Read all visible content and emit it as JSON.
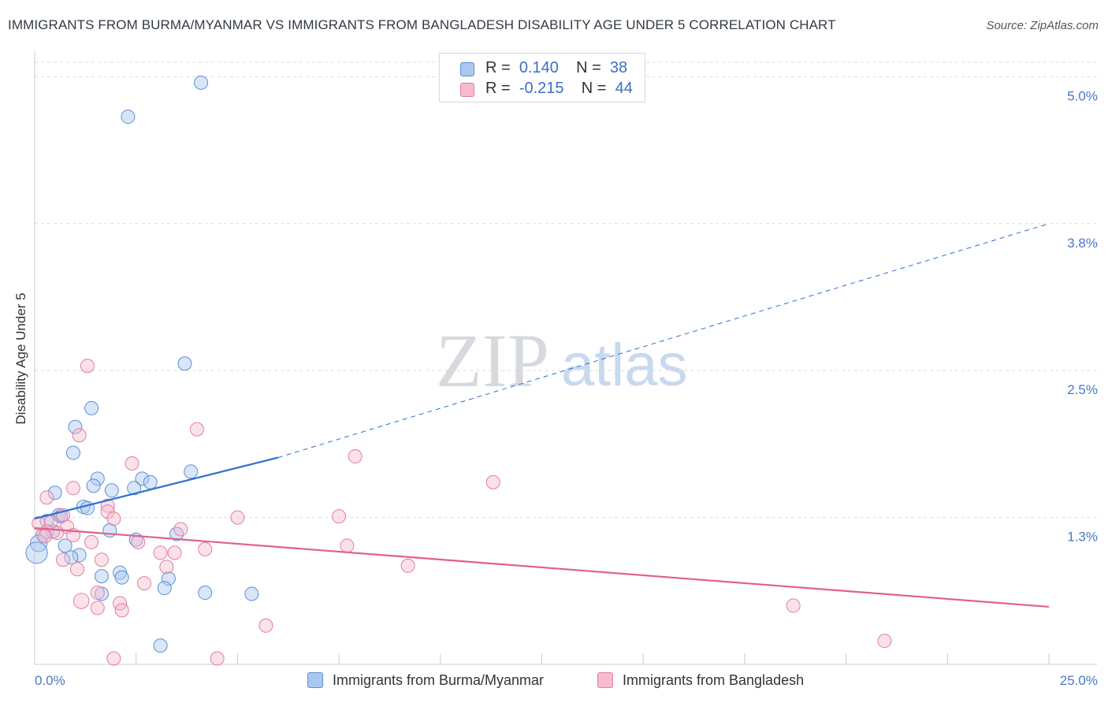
{
  "title": "IMMIGRANTS FROM BURMA/MYANMAR VS IMMIGRANTS FROM BANGLADESH DISABILITY AGE UNDER 5 CORRELATION CHART",
  "source": "Source: ZipAtlas.com",
  "watermark": {
    "zip": "ZIP",
    "atlas": "atlas"
  },
  "legend": {
    "rows": [
      {
        "r_label": "R =",
        "r_value": "0.140",
        "n_label": "N =",
        "n_value": "38"
      },
      {
        "r_label": "R =",
        "r_value": "-0.215",
        "n_label": "N =",
        "n_value": "44"
      }
    ]
  },
  "bottom_legend": {
    "items": [
      {
        "label": "Immigrants from Burma/Myanmar"
      },
      {
        "label": "Immigrants from Bangladesh"
      }
    ]
  },
  "colors": {
    "blue_fill": "#aac8ef",
    "blue_stroke": "#5b8fd6",
    "blue_line": "#2f6fcf",
    "pink_fill": "#f6bccd",
    "pink_stroke": "#e07fa0",
    "pink_line": "#e0608e",
    "grid": "#dcdcdc",
    "axis_text": "#4a78c2"
  },
  "chart_data": {
    "type": "scatter",
    "title": "IMMIGRANTS FROM BURMA/MYANMAR VS IMMIGRANTS FROM BANGLADESH DISABILITY AGE UNDER 5 CORRELATION CHART",
    "xlabel": "",
    "ylabel": "Disability Age Under 5",
    "xlim": [
      0,
      25
    ],
    "ylim": [
      0,
      5.15
    ],
    "x_tick_labels": [
      {
        "value": 0,
        "label": "0.0%"
      },
      {
        "value": 25,
        "label": "25.0%"
      }
    ],
    "x_minor_ticks": [
      2.5,
      5,
      7.5,
      10,
      12.5,
      15,
      17.5,
      20,
      22.5,
      25
    ],
    "y_ticks": [
      {
        "value": 1.25,
        "label": "1.3%"
      },
      {
        "value": 2.5,
        "label": "2.5%"
      },
      {
        "value": 3.75,
        "label": "3.8%"
      },
      {
        "value": 5.0,
        "label": "5.0%"
      }
    ],
    "series": [
      {
        "name": "Immigrants from Burma/Myanmar",
        "color": "blue",
        "R": 0.14,
        "N": 38,
        "trend": {
          "x0": 0,
          "y0": 1.24,
          "x1": 6.0,
          "y1": 1.76,
          "x_dash_end": 25,
          "y_dash_end": 3.75
        },
        "points": [
          {
            "x": 4.1,
            "y": 4.95,
            "s": 1
          },
          {
            "x": 2.3,
            "y": 4.66,
            "s": 1
          },
          {
            "x": 3.7,
            "y": 2.56,
            "s": 1
          },
          {
            "x": 1.4,
            "y": 2.18,
            "s": 1
          },
          {
            "x": 1.0,
            "y": 2.02,
            "s": 1
          },
          {
            "x": 0.95,
            "y": 1.8,
            "s": 1
          },
          {
            "x": 3.85,
            "y": 1.64,
            "s": 1
          },
          {
            "x": 1.55,
            "y": 1.58,
            "s": 1
          },
          {
            "x": 2.65,
            "y": 1.58,
            "s": 1
          },
          {
            "x": 1.45,
            "y": 1.52,
            "s": 1
          },
          {
            "x": 2.85,
            "y": 1.55,
            "s": 1
          },
          {
            "x": 1.9,
            "y": 1.48,
            "s": 1
          },
          {
            "x": 2.45,
            "y": 1.5,
            "s": 1
          },
          {
            "x": 0.5,
            "y": 1.46,
            "s": 1
          },
          {
            "x": 1.2,
            "y": 1.34,
            "s": 1
          },
          {
            "x": 1.3,
            "y": 1.33,
            "s": 1
          },
          {
            "x": 0.6,
            "y": 1.27,
            "s": 1
          },
          {
            "x": 0.65,
            "y": 1.26,
            "s": 1
          },
          {
            "x": 0.3,
            "y": 1.22,
            "s": 1
          },
          {
            "x": 0.45,
            "y": 1.13,
            "s": 1
          },
          {
            "x": 0.2,
            "y": 1.1,
            "s": 1
          },
          {
            "x": 1.85,
            "y": 1.14,
            "s": 1
          },
          {
            "x": 3.5,
            "y": 1.11,
            "s": 1
          },
          {
            "x": 2.5,
            "y": 1.06,
            "s": 1
          },
          {
            "x": 0.1,
            "y": 1.03,
            "s": 1.25
          },
          {
            "x": 0.75,
            "y": 1.01,
            "s": 1
          },
          {
            "x": 0.05,
            "y": 0.95,
            "s": 1.6
          },
          {
            "x": 1.1,
            "y": 0.93,
            "s": 1
          },
          {
            "x": 0.9,
            "y": 0.91,
            "s": 1
          },
          {
            "x": 2.1,
            "y": 0.78,
            "s": 1
          },
          {
            "x": 2.15,
            "y": 0.74,
            "s": 1
          },
          {
            "x": 1.65,
            "y": 0.75,
            "s": 1
          },
          {
            "x": 3.3,
            "y": 0.73,
            "s": 1
          },
          {
            "x": 3.2,
            "y": 0.65,
            "s": 1
          },
          {
            "x": 4.2,
            "y": 0.61,
            "s": 1
          },
          {
            "x": 5.35,
            "y": 0.6,
            "s": 1
          },
          {
            "x": 1.65,
            "y": 0.6,
            "s": 1
          },
          {
            "x": 3.1,
            "y": 0.16,
            "s": 1
          }
        ]
      },
      {
        "name": "Immigrants from Bangladesh",
        "color": "pink",
        "R": -0.215,
        "N": 44,
        "trend": {
          "x0": 0,
          "y0": 1.16,
          "x1": 25,
          "y1": 0.49
        },
        "points": [
          {
            "x": 1.3,
            "y": 2.54,
            "s": 1
          },
          {
            "x": 4.0,
            "y": 2.0,
            "s": 1
          },
          {
            "x": 1.1,
            "y": 1.95,
            "s": 1
          },
          {
            "x": 7.9,
            "y": 1.77,
            "s": 1
          },
          {
            "x": 2.4,
            "y": 1.71,
            "s": 1
          },
          {
            "x": 11.3,
            "y": 1.55,
            "s": 1
          },
          {
            "x": 0.95,
            "y": 1.5,
            "s": 1
          },
          {
            "x": 0.3,
            "y": 1.42,
            "s": 1
          },
          {
            "x": 1.8,
            "y": 1.35,
            "s": 1
          },
          {
            "x": 1.8,
            "y": 1.3,
            "s": 1
          },
          {
            "x": 0.7,
            "y": 1.27,
            "s": 1
          },
          {
            "x": 1.95,
            "y": 1.24,
            "s": 1
          },
          {
            "x": 5.0,
            "y": 1.25,
            "s": 1
          },
          {
            "x": 7.5,
            "y": 1.26,
            "s": 1
          },
          {
            "x": 0.1,
            "y": 1.2,
            "s": 1
          },
          {
            "x": 0.4,
            "y": 1.21,
            "s": 1
          },
          {
            "x": 0.8,
            "y": 1.17,
            "s": 1
          },
          {
            "x": 0.3,
            "y": 1.13,
            "s": 1
          },
          {
            "x": 0.55,
            "y": 1.12,
            "s": 1
          },
          {
            "x": 0.25,
            "y": 1.09,
            "s": 1
          },
          {
            "x": 0.95,
            "y": 1.1,
            "s": 1
          },
          {
            "x": 3.6,
            "y": 1.15,
            "s": 1
          },
          {
            "x": 1.4,
            "y": 1.04,
            "s": 1
          },
          {
            "x": 2.55,
            "y": 1.04,
            "s": 1
          },
          {
            "x": 7.7,
            "y": 1.01,
            "s": 1
          },
          {
            "x": 4.2,
            "y": 0.98,
            "s": 1
          },
          {
            "x": 3.1,
            "y": 0.95,
            "s": 1
          },
          {
            "x": 3.45,
            "y": 0.95,
            "s": 1
          },
          {
            "x": 0.7,
            "y": 0.89,
            "s": 1
          },
          {
            "x": 1.65,
            "y": 0.89,
            "s": 1
          },
          {
            "x": 3.25,
            "y": 0.83,
            "s": 1
          },
          {
            "x": 9.2,
            "y": 0.84,
            "s": 1
          },
          {
            "x": 1.05,
            "y": 0.81,
            "s": 1
          },
          {
            "x": 2.7,
            "y": 0.69,
            "s": 1
          },
          {
            "x": 1.55,
            "y": 0.61,
            "s": 1
          },
          {
            "x": 1.15,
            "y": 0.54,
            "s": 1.15
          },
          {
            "x": 2.1,
            "y": 0.52,
            "s": 1
          },
          {
            "x": 1.55,
            "y": 0.48,
            "s": 1
          },
          {
            "x": 2.15,
            "y": 0.46,
            "s": 1
          },
          {
            "x": 18.7,
            "y": 0.5,
            "s": 1
          },
          {
            "x": 5.7,
            "y": 0.33,
            "s": 1
          },
          {
            "x": 20.95,
            "y": 0.2,
            "s": 1
          },
          {
            "x": 1.95,
            "y": 0.05,
            "s": 1
          },
          {
            "x": 4.5,
            "y": 0.05,
            "s": 1
          }
        ]
      }
    ]
  }
}
